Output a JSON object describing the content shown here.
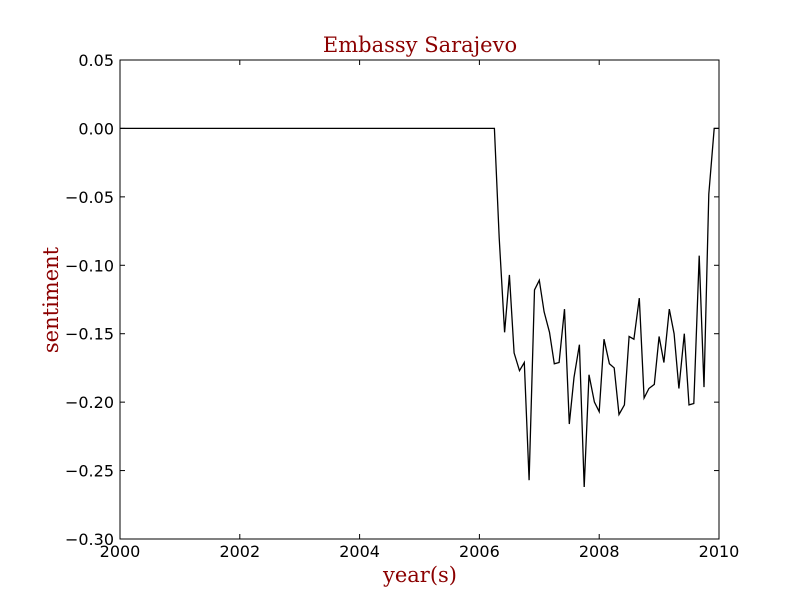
{
  "chart_data": {
    "type": "line",
    "title": "Embassy Sarajevo",
    "xlabel": "year(s)",
    "ylabel": "sentiment",
    "xlim": [
      2000,
      2010
    ],
    "ylim": [
      -0.3,
      0.05
    ],
    "grid": false,
    "line_color": "#000000",
    "label_color": "#8b0000",
    "x_ticks": [
      2000,
      2002,
      2004,
      2006,
      2008,
      2010
    ],
    "x_tick_labels": [
      "2000",
      "2002",
      "2004",
      "2006",
      "2008",
      "2010"
    ],
    "y_ticks": [
      0.05,
      0.0,
      -0.05,
      -0.1,
      -0.15,
      -0.2,
      -0.25,
      -0.3
    ],
    "y_tick_labels": [
      "0.05",
      "0.00",
      "−0.05",
      "−0.10",
      "−0.15",
      "−0.20",
      "−0.25",
      "−0.30"
    ],
    "series": [
      {
        "x": [
          2000.0,
          2006.25,
          2006.33,
          2006.42,
          2006.5,
          2006.58,
          2006.67,
          2006.75,
          2006.83,
          2006.92,
          2007.0,
          2007.08,
          2007.17,
          2007.25,
          2007.33,
          2007.42,
          2007.5,
          2007.58,
          2007.67,
          2007.75,
          2007.83,
          2007.92,
          2008.0,
          2008.08,
          2008.17,
          2008.25,
          2008.33,
          2008.42,
          2008.5,
          2008.58,
          2008.67,
          2008.75,
          2008.83,
          2008.92,
          2009.0,
          2009.08,
          2009.17,
          2009.25,
          2009.33,
          2009.42,
          2009.5,
          2009.58,
          2009.67,
          2009.75,
          2009.83,
          2009.92,
          2010.0
        ],
        "y": [
          0.0,
          0.0,
          -0.08,
          -0.149,
          -0.107,
          -0.164,
          -0.177,
          -0.171,
          -0.257,
          -0.118,
          -0.111,
          -0.134,
          -0.149,
          -0.172,
          -0.171,
          -0.132,
          -0.216,
          -0.182,
          -0.158,
          -0.262,
          -0.18,
          -0.2,
          -0.207,
          -0.154,
          -0.172,
          -0.175,
          -0.209,
          -0.202,
          -0.152,
          -0.154,
          -0.124,
          -0.197,
          -0.19,
          -0.187,
          -0.152,
          -0.171,
          -0.132,
          -0.15,
          -0.19,
          -0.15,
          -0.202,
          -0.201,
          -0.093,
          -0.189,
          -0.048,
          0.0,
          0.0
        ]
      }
    ]
  }
}
